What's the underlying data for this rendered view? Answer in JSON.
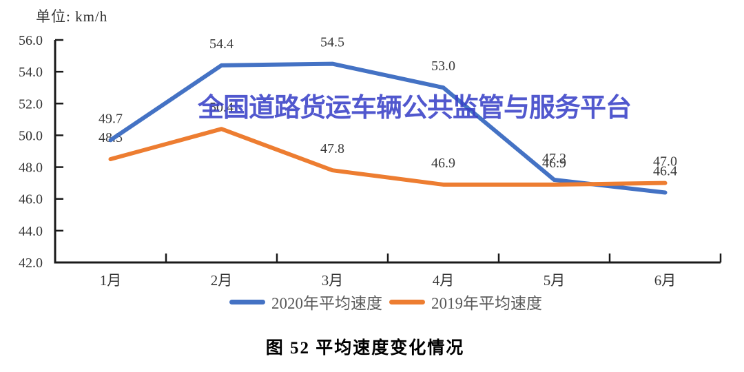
{
  "unit_label": "单位: km/h",
  "watermark": "全国道路货运车辆公共监管与服务平台",
  "caption": "图 52 平均速度变化情况",
  "chart_data": {
    "type": "line",
    "title": "图 52 平均速度变化情况",
    "unit": "km/h",
    "categories": [
      "1月",
      "2月",
      "3月",
      "4月",
      "5月",
      "6月"
    ],
    "series": [
      {
        "name": "2020年平均速度",
        "color": "#4472C4",
        "values": [
          49.7,
          54.4,
          54.5,
          53.0,
          47.2,
          46.4
        ]
      },
      {
        "name": "2019年平均速度",
        "color": "#ED7D31",
        "values": [
          48.5,
          50.4,
          47.8,
          46.9,
          46.9,
          47.0
        ]
      }
    ],
    "ylim": [
      42.0,
      56.0
    ],
    "yticks": [
      56.0,
      54.0,
      52.0,
      50.0,
      48.0,
      46.0,
      44.0,
      42.0
    ],
    "grid": false,
    "legend_position": "bottom",
    "data_labels": true
  },
  "colors": {
    "axis": "#1a1a1a",
    "tick_label": "#333333",
    "data_label": "#3a3a3a",
    "legend_text": "#595959",
    "watermark": "#3a41c8",
    "background": "#ffffff"
  }
}
